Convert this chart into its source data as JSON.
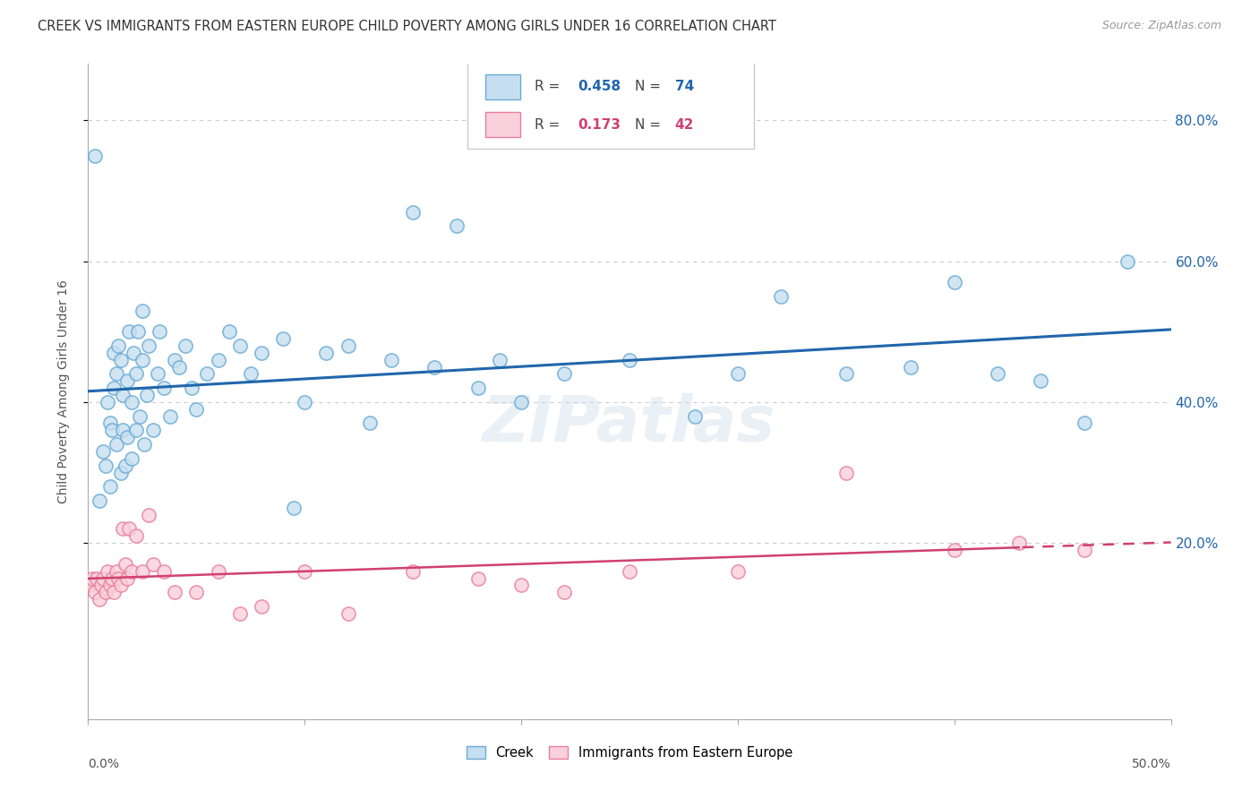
{
  "title": "CREEK VS IMMIGRANTS FROM EASTERN EUROPE CHILD POVERTY AMONG GIRLS UNDER 16 CORRELATION CHART",
  "source": "Source: ZipAtlas.com",
  "ylabel": "Child Poverty Among Girls Under 16",
  "watermark": "ZIPatlas",
  "creek_color_face": "#c6dff0",
  "creek_color_edge": "#6aaad4",
  "imm_color_face": "#f9d0dc",
  "imm_color_edge": "#e8809c",
  "blue_line_color": "#2166ac",
  "pink_line_color": "#d04070",
  "ytick_labels": [
    "20.0%",
    "40.0%",
    "60.0%",
    "80.0%"
  ],
  "ytick_values": [
    0.2,
    0.4,
    0.6,
    0.8
  ],
  "xlim": [
    0.0,
    0.5
  ],
  "ylim": [
    -0.05,
    0.88
  ],
  "grid_color": "#cccccc",
  "background_color": "#ffffff",
  "creek_R": 0.458,
  "creek_N": 74,
  "imm_R": 0.173,
  "imm_N": 42,
  "creek_x": [
    0.003,
    0.005,
    0.007,
    0.008,
    0.009,
    0.01,
    0.01,
    0.011,
    0.012,
    0.012,
    0.013,
    0.013,
    0.014,
    0.015,
    0.015,
    0.016,
    0.016,
    0.017,
    0.018,
    0.018,
    0.019,
    0.02,
    0.02,
    0.021,
    0.022,
    0.022,
    0.023,
    0.024,
    0.025,
    0.025,
    0.026,
    0.027,
    0.028,
    0.03,
    0.032,
    0.033,
    0.035,
    0.038,
    0.04,
    0.042,
    0.045,
    0.048,
    0.05,
    0.055,
    0.06,
    0.065,
    0.07,
    0.075,
    0.08,
    0.09,
    0.095,
    0.1,
    0.11,
    0.12,
    0.13,
    0.14,
    0.15,
    0.16,
    0.17,
    0.18,
    0.19,
    0.2,
    0.22,
    0.25,
    0.28,
    0.3,
    0.32,
    0.35,
    0.38,
    0.4,
    0.42,
    0.44,
    0.46,
    0.48
  ],
  "creek_y": [
    0.75,
    0.26,
    0.33,
    0.31,
    0.4,
    0.37,
    0.28,
    0.36,
    0.42,
    0.47,
    0.44,
    0.34,
    0.48,
    0.3,
    0.46,
    0.36,
    0.41,
    0.31,
    0.35,
    0.43,
    0.5,
    0.32,
    0.4,
    0.47,
    0.36,
    0.44,
    0.5,
    0.38,
    0.46,
    0.53,
    0.34,
    0.41,
    0.48,
    0.36,
    0.44,
    0.5,
    0.42,
    0.38,
    0.46,
    0.45,
    0.48,
    0.42,
    0.39,
    0.44,
    0.46,
    0.5,
    0.48,
    0.44,
    0.47,
    0.49,
    0.25,
    0.4,
    0.47,
    0.48,
    0.37,
    0.46,
    0.67,
    0.45,
    0.65,
    0.42,
    0.46,
    0.4,
    0.44,
    0.46,
    0.38,
    0.44,
    0.55,
    0.44,
    0.45,
    0.57,
    0.44,
    0.43,
    0.37,
    0.6
  ],
  "imm_x": [
    0.001,
    0.002,
    0.003,
    0.004,
    0.005,
    0.006,
    0.007,
    0.008,
    0.009,
    0.01,
    0.011,
    0.012,
    0.013,
    0.014,
    0.015,
    0.016,
    0.017,
    0.018,
    0.019,
    0.02,
    0.022,
    0.025,
    0.028,
    0.03,
    0.035,
    0.04,
    0.05,
    0.06,
    0.07,
    0.08,
    0.1,
    0.12,
    0.15,
    0.18,
    0.2,
    0.22,
    0.25,
    0.3,
    0.35,
    0.4,
    0.43,
    0.46
  ],
  "imm_y": [
    0.14,
    0.15,
    0.13,
    0.15,
    0.12,
    0.14,
    0.15,
    0.13,
    0.16,
    0.14,
    0.15,
    0.13,
    0.16,
    0.15,
    0.14,
    0.22,
    0.17,
    0.15,
    0.22,
    0.16,
    0.21,
    0.16,
    0.24,
    0.17,
    0.16,
    0.13,
    0.13,
    0.16,
    0.1,
    0.11,
    0.16,
    0.1,
    0.16,
    0.15,
    0.14,
    0.13,
    0.16,
    0.16,
    0.3,
    0.19,
    0.2,
    0.19
  ]
}
